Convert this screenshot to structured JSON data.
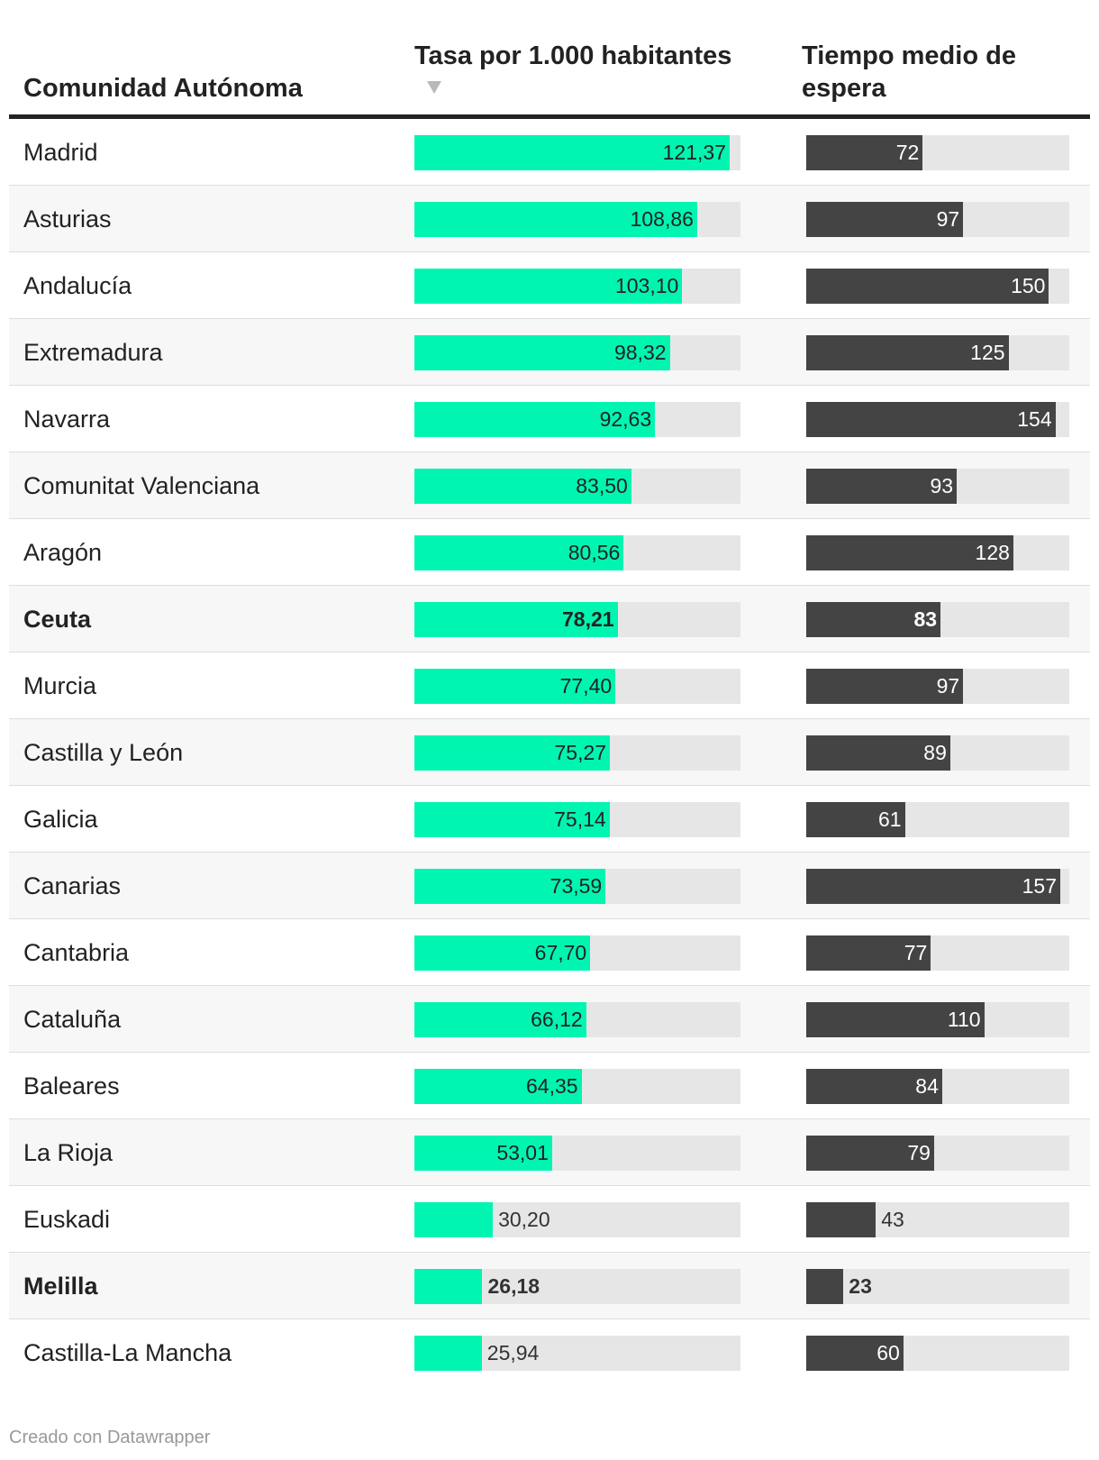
{
  "header": {
    "region": "Comunidad Autónoma",
    "rate": "Tasa por 1.000 habitantes",
    "wait": "Tiempo medio de espera"
  },
  "footer": "Creado con Datawrapper",
  "colors": {
    "rate_bar": "#00f5b1",
    "wait_bar": "#444444",
    "track": "#e6e6e6",
    "alt_row": "#f7f7f7"
  },
  "chart_data": {
    "type": "table",
    "columns": [
      "Comunidad Autónoma",
      "Tasa por 1.000 habitantes",
      "Tiempo medio de espera"
    ],
    "sorted_by": "Tasa por 1.000 habitantes",
    "sort_order": "descending",
    "rate_max": 121.37,
    "wait_max": 157,
    "rows": [
      {
        "region": "Madrid",
        "rate": 121.37,
        "rate_label": "121,37",
        "wait": 72,
        "wait_label": "72",
        "highlight": false
      },
      {
        "region": "Asturias",
        "rate": 108.86,
        "rate_label": "108,86",
        "wait": 97,
        "wait_label": "97",
        "highlight": false
      },
      {
        "region": "Andalucía",
        "rate": 103.1,
        "rate_label": "103,10",
        "wait": 150,
        "wait_label": "150",
        "highlight": false
      },
      {
        "region": "Extremadura",
        "rate": 98.32,
        "rate_label": "98,32",
        "wait": 125,
        "wait_label": "125",
        "highlight": false
      },
      {
        "region": "Navarra",
        "rate": 92.63,
        "rate_label": "92,63",
        "wait": 154,
        "wait_label": "154",
        "highlight": false
      },
      {
        "region": "Comunitat Valenciana",
        "rate": 83.5,
        "rate_label": "83,50",
        "wait": 93,
        "wait_label": "93",
        "highlight": false
      },
      {
        "region": "Aragón",
        "rate": 80.56,
        "rate_label": "80,56",
        "wait": 128,
        "wait_label": "128",
        "highlight": false
      },
      {
        "region": "Ceuta",
        "rate": 78.21,
        "rate_label": "78,21",
        "wait": 83,
        "wait_label": "83",
        "highlight": true
      },
      {
        "region": "Murcia",
        "rate": 77.4,
        "rate_label": "77,40",
        "wait": 97,
        "wait_label": "97",
        "highlight": false
      },
      {
        "region": "Castilla y León",
        "rate": 75.27,
        "rate_label": "75,27",
        "wait": 89,
        "wait_label": "89",
        "highlight": false
      },
      {
        "region": "Galicia",
        "rate": 75.14,
        "rate_label": "75,14",
        "wait": 61,
        "wait_label": "61",
        "highlight": false
      },
      {
        "region": "Canarias",
        "rate": 73.59,
        "rate_label": "73,59",
        "wait": 157,
        "wait_label": "157",
        "highlight": false
      },
      {
        "region": "Cantabria",
        "rate": 67.7,
        "rate_label": "67,70",
        "wait": 77,
        "wait_label": "77",
        "highlight": false
      },
      {
        "region": "Cataluña",
        "rate": 66.12,
        "rate_label": "66,12",
        "wait": 110,
        "wait_label": "110",
        "highlight": false
      },
      {
        "region": "Baleares",
        "rate": 64.35,
        "rate_label": "64,35",
        "wait": 84,
        "wait_label": "84",
        "highlight": false
      },
      {
        "region": "La Rioja",
        "rate": 53.01,
        "rate_label": "53,01",
        "wait": 79,
        "wait_label": "79",
        "highlight": false
      },
      {
        "region": "Euskadi",
        "rate": 30.2,
        "rate_label": "30,20",
        "wait": 43,
        "wait_label": "43",
        "highlight": false
      },
      {
        "region": "Melilla",
        "rate": 26.18,
        "rate_label": "26,18",
        "wait": 23,
        "wait_label": "23",
        "highlight": true
      },
      {
        "region": "Castilla-La Mancha",
        "rate": 25.94,
        "rate_label": "25,94",
        "wait": 60,
        "wait_label": "60",
        "highlight": false
      }
    ]
  }
}
